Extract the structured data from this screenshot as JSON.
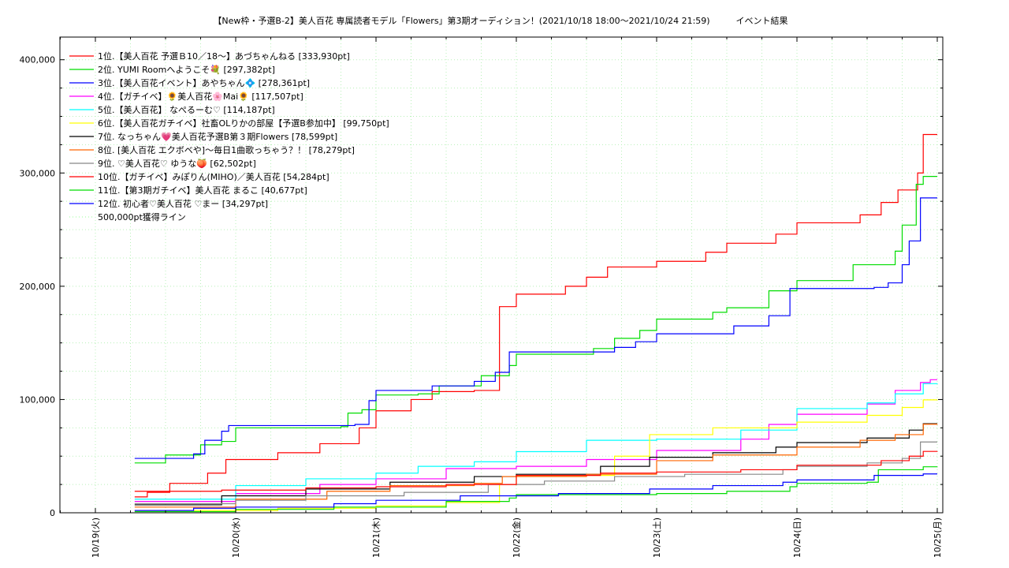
{
  "chart_data": {
    "type": "line",
    "title": "【New枠・予選B-2】美人百花 専属読者モデル「Flowers」第3期オーディション！(2021/10/18 18:00〜2021/10/24 21:59)　　　イベント結果",
    "xlabel": "",
    "ylabel": "",
    "x_unit": "days since 2021/10/19 00:00",
    "xlim": [
      -0.25,
      6.0
    ],
    "ylim": [
      0,
      420000
    ],
    "x_ticks": [
      {
        "x": 0,
        "label": "10/19(火)"
      },
      {
        "x": 1,
        "label": "10/20(水)"
      },
      {
        "x": 2,
        "label": "10/21(木)"
      },
      {
        "x": 3,
        "label": "10/22(金)"
      },
      {
        "x": 4,
        "label": "10/23(土)"
      },
      {
        "x": 5,
        "label": "10/24(日)"
      },
      {
        "x": 6,
        "label": "10/25(月)"
      }
    ],
    "y_ticks": [
      {
        "y": 0,
        "label": "0"
      },
      {
        "y": 100000,
        "label": "100,000"
      },
      {
        "y": 200000,
        "label": "200,000"
      },
      {
        "y": 300000,
        "label": "300,000"
      },
      {
        "y": 400000,
        "label": "400,000"
      }
    ],
    "grid": true,
    "legend_position": "top-left",
    "series": [
      {
        "name": "1位.【美人百花 予選Ｂ10／18〜】あづちゃんねる [333,930pt]",
        "color": "#ff0000",
        "points": [
          [
            0.28,
            14000
          ],
          [
            0.37,
            18000
          ],
          [
            0.53,
            26000
          ],
          [
            0.8,
            35000
          ],
          [
            0.93,
            47000
          ],
          [
            1.3,
            53000
          ],
          [
            1.6,
            61000
          ],
          [
            1.88,
            75000
          ],
          [
            2.0,
            90000
          ],
          [
            2.25,
            100000
          ],
          [
            2.4,
            107000
          ],
          [
            2.7,
            108000
          ],
          [
            2.88,
            182000
          ],
          [
            3.0,
            193000
          ],
          [
            3.35,
            200000
          ],
          [
            3.5,
            208000
          ],
          [
            3.65,
            217000
          ],
          [
            4.0,
            222000
          ],
          [
            4.35,
            230000
          ],
          [
            4.5,
            238000
          ],
          [
            4.85,
            246000
          ],
          [
            5.0,
            256000
          ],
          [
            5.45,
            263000
          ],
          [
            5.6,
            274000
          ],
          [
            5.72,
            285000
          ],
          [
            5.86,
            300000
          ],
          [
            5.9,
            334000
          ],
          [
            6.0,
            334000
          ]
        ]
      },
      {
        "name": "2位. YUMI Roomへようこそ💐 [297,382pt]",
        "color": "#00dd00",
        "points": [
          [
            0.28,
            44000
          ],
          [
            0.5,
            51000
          ],
          [
            0.75,
            60000
          ],
          [
            0.9,
            63000
          ],
          [
            1.0,
            75000
          ],
          [
            1.75,
            76000
          ],
          [
            1.8,
            88000
          ],
          [
            1.9,
            91000
          ],
          [
            2.0,
            104000
          ],
          [
            2.3,
            105000
          ],
          [
            2.45,
            112000
          ],
          [
            2.75,
            121000
          ],
          [
            2.95,
            130000
          ],
          [
            3.0,
            140000
          ],
          [
            3.55,
            145000
          ],
          [
            3.7,
            154000
          ],
          [
            3.88,
            161000
          ],
          [
            4.0,
            171000
          ],
          [
            4.4,
            177000
          ],
          [
            4.5,
            181000
          ],
          [
            4.8,
            196000
          ],
          [
            5.0,
            205000
          ],
          [
            5.4,
            219000
          ],
          [
            5.7,
            231000
          ],
          [
            5.75,
            254000
          ],
          [
            5.85,
            290000
          ],
          [
            5.9,
            297000
          ],
          [
            6.0,
            297000
          ]
        ]
      },
      {
        "name": "3位.【美人百花イベント】あやちゃん💠 [278,361pt]",
        "color": "#0000ff",
        "points": [
          [
            0.28,
            48000
          ],
          [
            0.7,
            52000
          ],
          [
            0.78,
            64000
          ],
          [
            0.9,
            72000
          ],
          [
            0.95,
            77000
          ],
          [
            1.85,
            78000
          ],
          [
            1.95,
            99000
          ],
          [
            2.0,
            108000
          ],
          [
            2.4,
            112000
          ],
          [
            2.7,
            116000
          ],
          [
            2.85,
            124000
          ],
          [
            2.95,
            142000
          ],
          [
            3.7,
            146000
          ],
          [
            3.85,
            151000
          ],
          [
            4.0,
            158000
          ],
          [
            4.55,
            165000
          ],
          [
            4.8,
            174000
          ],
          [
            4.95,
            198000
          ],
          [
            5.55,
            199000
          ],
          [
            5.65,
            203000
          ],
          [
            5.75,
            219000
          ],
          [
            5.8,
            240000
          ],
          [
            5.88,
            278000
          ],
          [
            6.0,
            278000
          ]
        ]
      },
      {
        "name": "4位.【ガチイベ】🌻美人百花🌸Mai🌻 [117,507pt]",
        "color": "#ff00ff",
        "points": [
          [
            0.28,
            10000
          ],
          [
            1.0,
            17000
          ],
          [
            1.6,
            25000
          ],
          [
            2.0,
            30000
          ],
          [
            2.5,
            39000
          ],
          [
            3.0,
            41000
          ],
          [
            3.5,
            47000
          ],
          [
            4.0,
            55000
          ],
          [
            4.6,
            65000
          ],
          [
            4.8,
            78000
          ],
          [
            5.0,
            87000
          ],
          [
            5.5,
            96000
          ],
          [
            5.7,
            108000
          ],
          [
            5.88,
            115000
          ],
          [
            5.95,
            117500
          ],
          [
            6.0,
            117500
          ]
        ]
      },
      {
        "name": "5位.【美人百花】 なぺるーむ♡ [114,187pt]",
        "color": "#00ffff",
        "points": [
          [
            0.28,
            12000
          ],
          [
            1.0,
            24000
          ],
          [
            1.5,
            30000
          ],
          [
            2.0,
            35000
          ],
          [
            2.3,
            41000
          ],
          [
            2.7,
            45000
          ],
          [
            3.0,
            54000
          ],
          [
            3.5,
            64000
          ],
          [
            4.0,
            65000
          ],
          [
            4.6,
            73000
          ],
          [
            5.0,
            92000
          ],
          [
            5.5,
            97000
          ],
          [
            5.7,
            105000
          ],
          [
            5.9,
            114000
          ],
          [
            6.0,
            114200
          ]
        ]
      },
      {
        "name": "6位.【美人百花ガチイベ】社畜OLりかの部屋【予選B参加中】 [99,750pt]",
        "color": "#ffff00",
        "points": [
          [
            0.28,
            2000
          ],
          [
            1.3,
            4000
          ],
          [
            2.0,
            6000
          ],
          [
            2.5,
            9000
          ],
          [
            2.88,
            25000
          ],
          [
            3.0,
            33000
          ],
          [
            3.7,
            50000
          ],
          [
            3.95,
            69000
          ],
          [
            4.4,
            75000
          ],
          [
            5.0,
            80000
          ],
          [
            5.5,
            86000
          ],
          [
            5.75,
            93000
          ],
          [
            5.9,
            99700
          ],
          [
            6.0,
            99750
          ]
        ]
      },
      {
        "name": "7位. なっちゃん💗美人百花予選B第３期Flowers [78,599pt]",
        "color": "#000000",
        "points": [
          [
            0.28,
            7000
          ],
          [
            0.9,
            15000
          ],
          [
            1.5,
            21000
          ],
          [
            2.1,
            27000
          ],
          [
            2.7,
            32000
          ],
          [
            3.0,
            34000
          ],
          [
            3.6,
            41000
          ],
          [
            3.95,
            49000
          ],
          [
            4.4,
            53000
          ],
          [
            4.85,
            58000
          ],
          [
            5.0,
            62000
          ],
          [
            5.5,
            66000
          ],
          [
            5.8,
            73000
          ],
          [
            5.9,
            78600
          ],
          [
            6.0,
            78600
          ]
        ]
      },
      {
        "name": "8位. [美人百花 エクボベや]〜毎日1曲歌っちゃう？！ [78,279pt]",
        "color": "#ff6600",
        "points": [
          [
            0.28,
            5000
          ],
          [
            1.0,
            12000
          ],
          [
            1.65,
            19000
          ],
          [
            2.1,
            24000
          ],
          [
            2.7,
            26000
          ],
          [
            2.9,
            32000
          ],
          [
            3.5,
            34000
          ],
          [
            4.0,
            46000
          ],
          [
            4.4,
            51000
          ],
          [
            5.0,
            58000
          ],
          [
            5.45,
            64000
          ],
          [
            5.7,
            69000
          ],
          [
            5.9,
            78200
          ],
          [
            6.0,
            78280
          ]
        ]
      },
      {
        "name": "9位. ♡美人百花♡ ゆうな🍑 [62,502pt]",
        "color": "#888888",
        "points": [
          [
            0.28,
            8000
          ],
          [
            1.0,
            11000
          ],
          [
            1.5,
            15000
          ],
          [
            2.2,
            18000
          ],
          [
            2.8,
            25000
          ],
          [
            3.2,
            28000
          ],
          [
            3.7,
            32000
          ],
          [
            4.2,
            34000
          ],
          [
            4.9,
            38000
          ],
          [
            5.0,
            41000
          ],
          [
            5.5,
            44000
          ],
          [
            5.75,
            48000
          ],
          [
            5.88,
            62500
          ],
          [
            6.0,
            62500
          ]
        ]
      },
      {
        "name": "10位.【ガチイベ】みぽりん(MIHO)／美人百花 [54,284pt]",
        "color": "#ff0000",
        "points": [
          [
            0.28,
            19000
          ],
          [
            0.9,
            20000
          ],
          [
            1.5,
            22000
          ],
          [
            2.0,
            23000
          ],
          [
            2.5,
            25000
          ],
          [
            3.0,
            33000
          ],
          [
            3.6,
            35000
          ],
          [
            4.0,
            36000
          ],
          [
            4.6,
            38000
          ],
          [
            5.0,
            42000
          ],
          [
            5.6,
            46000
          ],
          [
            5.8,
            50000
          ],
          [
            5.9,
            54200
          ],
          [
            6.0,
            54280
          ]
        ]
      },
      {
        "name": "11位.【第3期ガチイベ】美人百花 まるこ [40,677pt]",
        "color": "#00dd00",
        "points": [
          [
            0.28,
            1000
          ],
          [
            1.0,
            3000
          ],
          [
            1.7,
            5000
          ],
          [
            2.5,
            10000
          ],
          [
            2.95,
            13000
          ],
          [
            3.0,
            16000
          ],
          [
            4.0,
            17000
          ],
          [
            4.5,
            19000
          ],
          [
            4.95,
            23000
          ],
          [
            5.0,
            26000
          ],
          [
            5.5,
            27000
          ],
          [
            5.58,
            38000
          ],
          [
            5.9,
            40600
          ],
          [
            6.0,
            40680
          ]
        ]
      },
      {
        "name": "12位. 初心者♡美人百花 ♡まー [34,297pt]",
        "color": "#0000ff",
        "points": [
          [
            0.28,
            2000
          ],
          [
            0.7,
            4000
          ],
          [
            1.0,
            5000
          ],
          [
            1.7,
            8000
          ],
          [
            2.0,
            11000
          ],
          [
            2.6,
            15000
          ],
          [
            3.3,
            17000
          ],
          [
            3.95,
            21000
          ],
          [
            4.4,
            24000
          ],
          [
            4.9,
            27000
          ],
          [
            5.0,
            29000
          ],
          [
            5.55,
            33000
          ],
          [
            5.9,
            34300
          ],
          [
            6.0,
            34300
          ]
        ]
      },
      {
        "name": "500,000pt獲得ライン",
        "color": "#aaffaa",
        "dashed": true,
        "points": []
      }
    ]
  }
}
